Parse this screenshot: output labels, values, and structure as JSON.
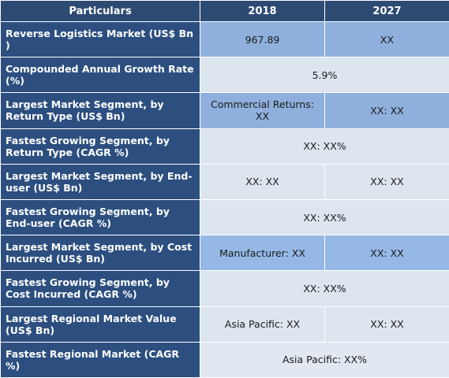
{
  "header": {
    "particulars": "Particulars",
    "col_2018": "2018",
    "col_2027": "2027"
  },
  "rows": [
    {
      "label": "Reverse Logistics Market (US$ Bn )",
      "v2018": "967.89",
      "v2027": "XX"
    },
    {
      "label": "Compounded Annual Growth Rate (%)",
      "merged": "5.9%"
    },
    {
      "label": "Largest Market Segment, by Return Type (US$ Bn)",
      "v2018": "Commercial Returns: XX",
      "v2027": "XX: XX"
    },
    {
      "label": "Fastest Growing Segment, by Return Type (CAGR %)",
      "merged": "XX: XX%"
    },
    {
      "label": "Largest Market Segment, by End-user (US$ Bn)",
      "v2018": "XX: XX",
      "v2027": "XX: XX"
    },
    {
      "label": "Fastest Growing Segment, by End-user (CAGR %)",
      "merged": "XX: XX%"
    },
    {
      "label": "Largest Market Segment, by Cost Incurred (US$ Bn)",
      "v2018": "Manufacturer: XX",
      "v2027": "XX: XX"
    },
    {
      "label": "Fastest Growing Segment, by Cost Incurred (CAGR %)",
      "merged": "XX: XX%"
    },
    {
      "label": "Largest Regional Market Value (US$ Bn)",
      "v2018": "Asia Pacific: XX",
      "v2027": "XX: XX"
    },
    {
      "label": "Fastest Regional Market (CAGR %)",
      "merged": "Asia Pacific: XX%"
    }
  ]
}
